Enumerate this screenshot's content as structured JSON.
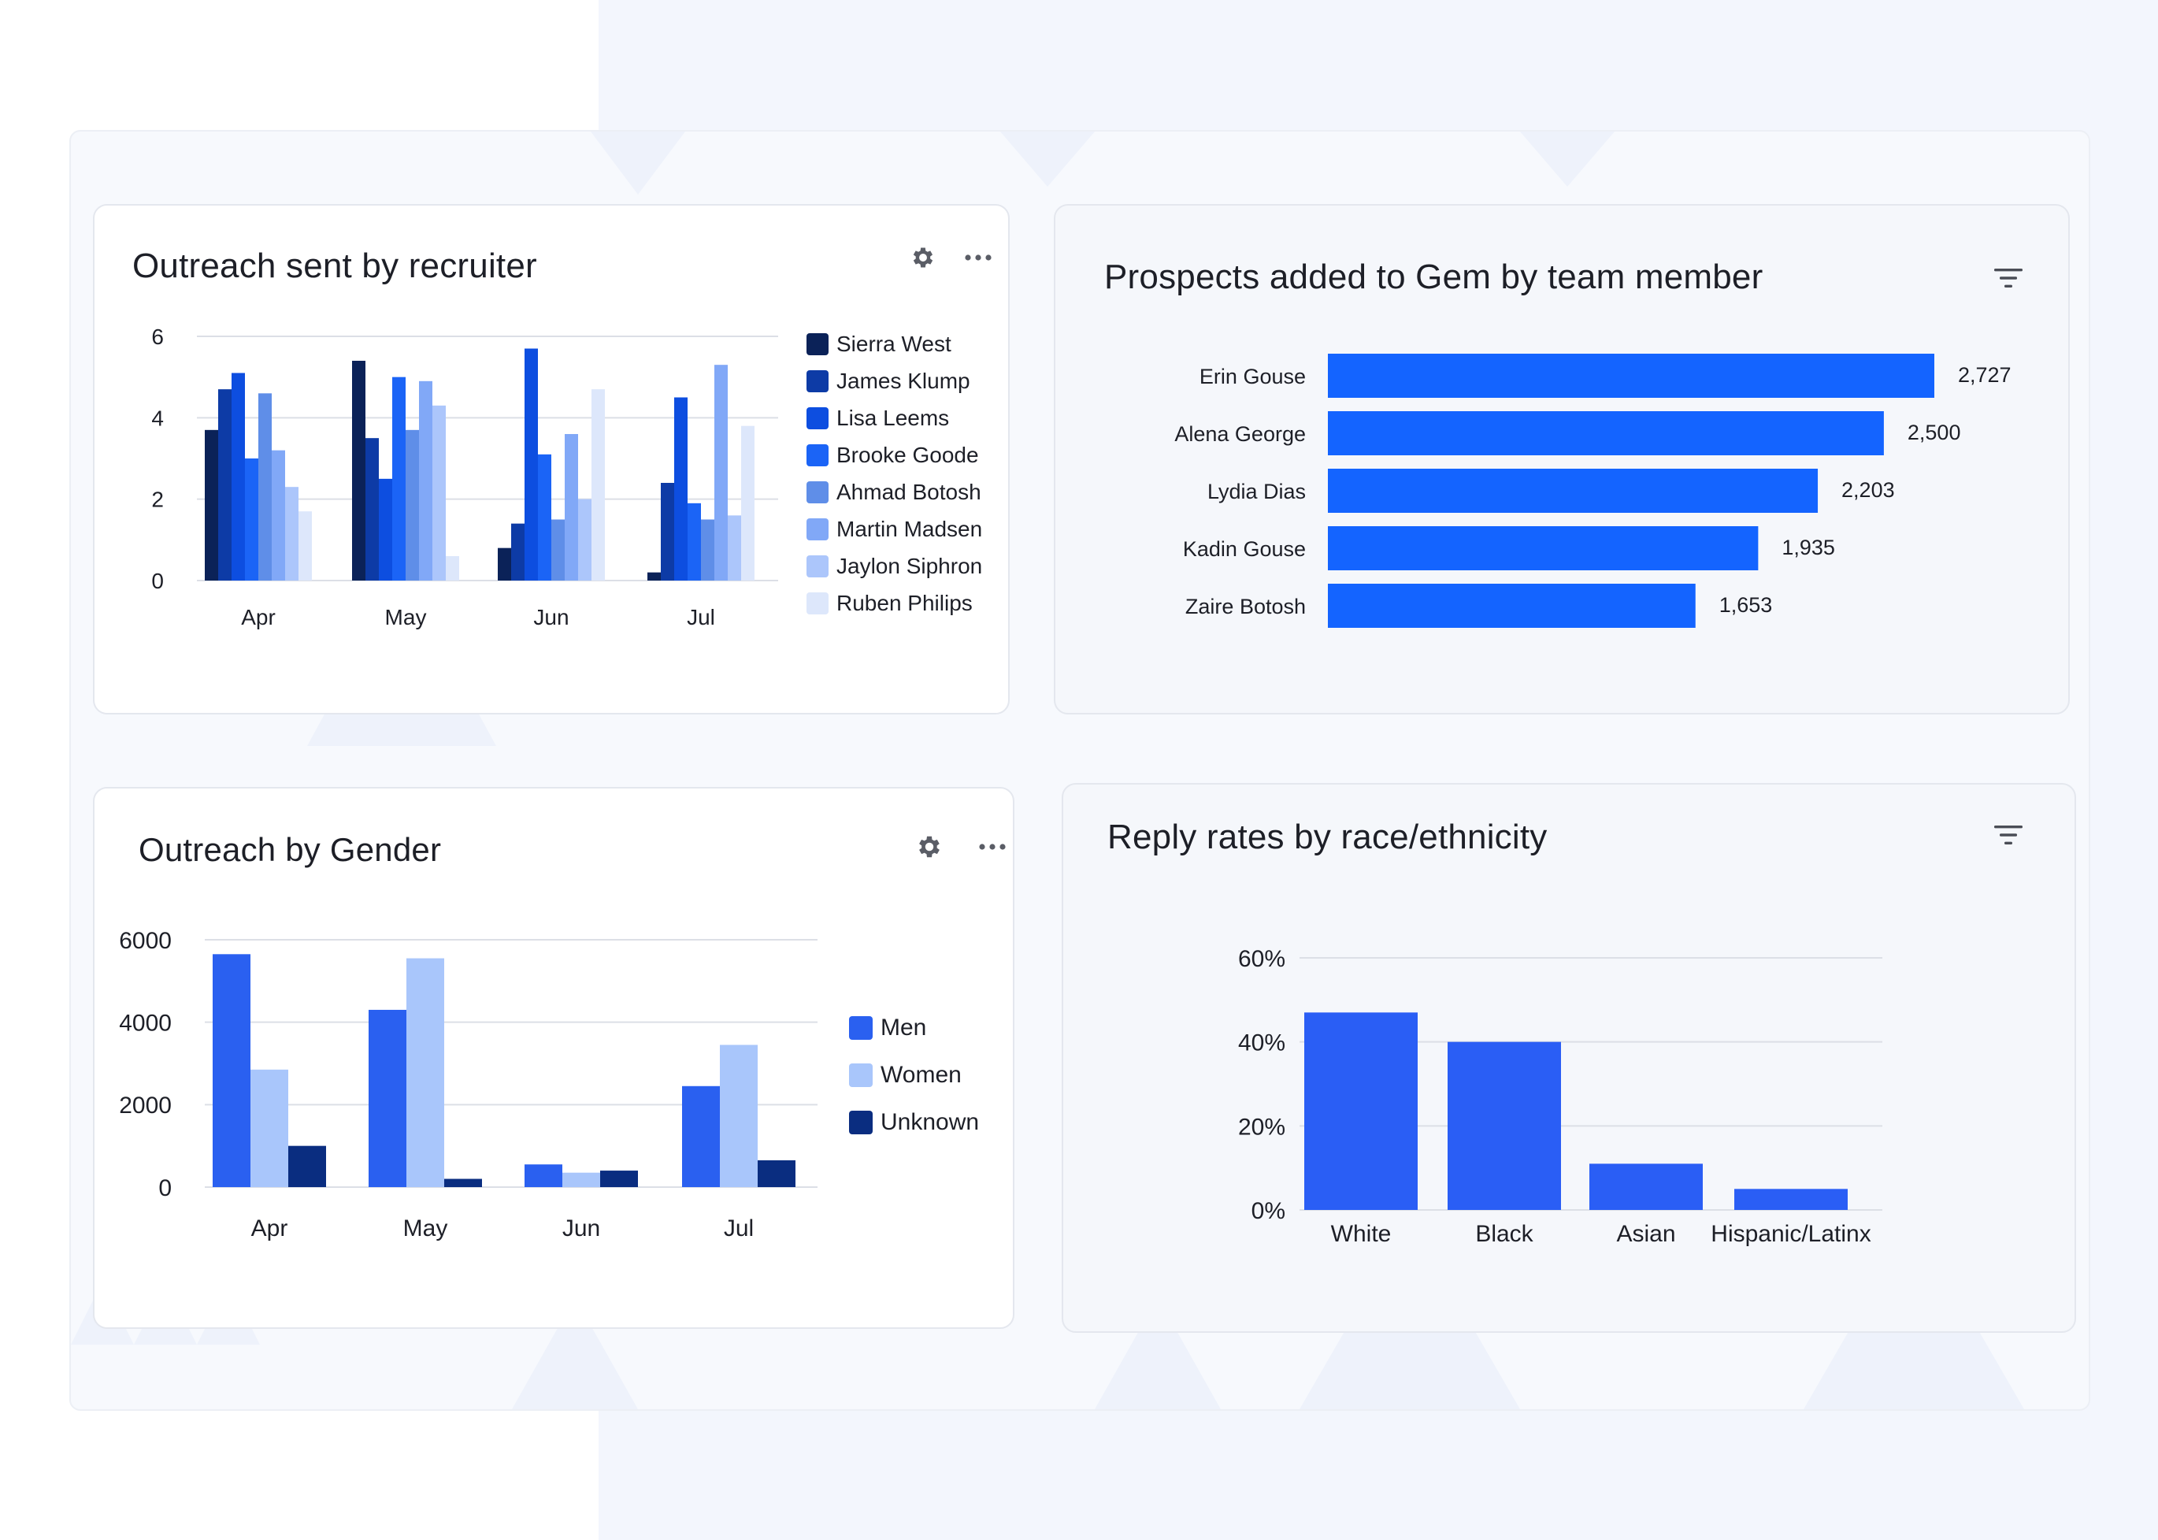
{
  "colors": {
    "page_band": "#f3f6fd",
    "gridline": "#dcdfe6",
    "bar_blue": "#1464ff",
    "reply_blue": "#2a5ef5"
  },
  "cards": {
    "outreach_recruiter": {
      "title": "Outreach sent by recruiter",
      "settings_icon": "gear-icon",
      "more_icon": "more-horizontal-icon"
    },
    "prospects": {
      "title": "Prospects added to Gem by team member",
      "filter_icon": "filter-icon"
    },
    "outreach_gender": {
      "title": "Outreach by Gender",
      "settings_icon": "gear-icon",
      "more_icon": "more-horizontal-icon"
    },
    "reply_rates": {
      "title": "Reply rates by race/ethnicity",
      "filter_icon": "filter-icon"
    }
  },
  "chart_data": [
    {
      "id": "outreach_recruiter",
      "type": "bar",
      "title": "Outreach sent by recruiter",
      "categories": [
        "Apr",
        "May",
        "Jun",
        "Jul"
      ],
      "ylim": [
        0,
        6
      ],
      "yticks": [
        "0",
        "2",
        "4",
        "6"
      ],
      "grid": true,
      "legend_position": "right",
      "series": [
        {
          "name": "Sierra West",
          "color": "#0b2258",
          "values": [
            3.7,
            5.4,
            0.8,
            0.2
          ]
        },
        {
          "name": "James Klump",
          "color": "#0d3ba6",
          "values": [
            4.7,
            3.5,
            1.4,
            2.4
          ]
        },
        {
          "name": "Lisa Leems",
          "color": "#0d4ee0",
          "values": [
            5.1,
            2.5,
            5.7,
            4.5
          ]
        },
        {
          "name": "Brooke Goode",
          "color": "#1b64f6",
          "values": [
            3.0,
            5.0,
            3.1,
            1.9
          ]
        },
        {
          "name": "Ahmad Botosh",
          "color": "#5f8ee8",
          "values": [
            4.6,
            3.7,
            1.5,
            1.5
          ]
        },
        {
          "name": "Martin Madsen",
          "color": "#81a8f7",
          "values": [
            3.2,
            4.9,
            3.6,
            5.3
          ]
        },
        {
          "name": "Jaylon Siphron",
          "color": "#acc6fb",
          "values": [
            2.3,
            4.3,
            2.0,
            1.6
          ]
        },
        {
          "name": "Ruben Philips",
          "color": "#dde7fb",
          "values": [
            1.7,
            0.6,
            4.7,
            3.8
          ]
        }
      ]
    },
    {
      "id": "prospects",
      "type": "bar",
      "orientation": "horizontal",
      "title": "Prospects added to Gem by team member",
      "categories": [
        "Erin Gouse",
        "Alena George",
        "Lydia Dias",
        "Kadin Gouse",
        "Zaire Botosh"
      ],
      "values": [
        2727,
        2500,
        2203,
        1935,
        1653
      ],
      "value_labels": [
        "2,727",
        "2,500",
        "2,203",
        "1,935",
        "1,653"
      ],
      "xlim": [
        0,
        2727
      ],
      "grid": false
    },
    {
      "id": "outreach_gender",
      "type": "bar",
      "title": "Outreach by Gender",
      "categories": [
        "Apr",
        "May",
        "Jun",
        "Jul"
      ],
      "ylim": [
        0,
        6000
      ],
      "yticks": [
        "0",
        "2000",
        "4000",
        "6000"
      ],
      "grid": true,
      "legend_position": "right",
      "series": [
        {
          "name": "Men",
          "color": "#2a60f0",
          "values": [
            5650,
            4300,
            550,
            2450
          ]
        },
        {
          "name": "Women",
          "color": "#a9c6fb",
          "values": [
            2850,
            5550,
            350,
            3450
          ]
        },
        {
          "name": "Unknown",
          "color": "#0a2d80",
          "values": [
            1000,
            200,
            400,
            650
          ]
        }
      ]
    },
    {
      "id": "reply_rates",
      "type": "bar",
      "title": "Reply rates by race/ethnicity",
      "categories": [
        "White",
        "Black",
        "Asian",
        "Hispanic/Latinx"
      ],
      "values": [
        47,
        40,
        11,
        5
      ],
      "ylim": [
        0,
        60
      ],
      "yticks": [
        "0%",
        "20%",
        "40%",
        "60%"
      ],
      "grid": true
    }
  ]
}
